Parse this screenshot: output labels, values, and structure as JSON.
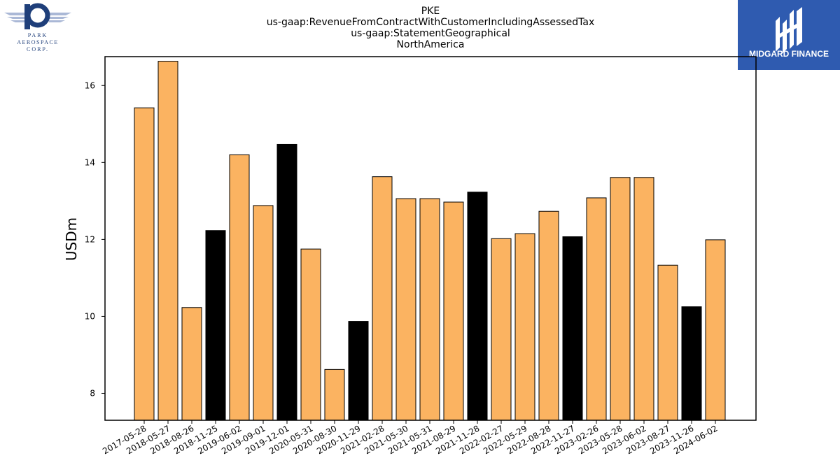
{
  "header": {
    "ticker": "PKE",
    "metric": "us-gaap:RevenueFromContractWithCustomerIncludingAssessedTax",
    "dimension": "us-gaap:StatementGeographical",
    "member": "NorthAmerica"
  },
  "logos": {
    "left": {
      "line1": "PARK",
      "line2": "AEROSPACE",
      "line3": "CORP."
    },
    "right": {
      "text": "MIDGARD FINANCE"
    }
  },
  "colors": {
    "bar_default": "#fbb361",
    "bar_highlight": "#000000",
    "logo_blue": "#2f5bb0",
    "logo_left_blue": "#1f3f7a"
  },
  "chart_data": {
    "type": "bar",
    "ylabel": "USDm",
    "ylim": [
      7.3,
      16.75
    ],
    "yticks": [
      8,
      10,
      12,
      14,
      16
    ],
    "categories": [
      "2017-05-28",
      "2018-05-27",
      "2018-08-26",
      "2018-11-25",
      "2019-06-02",
      "2019-09-01",
      "2019-12-01",
      "2020-05-31",
      "2020-08-30",
      "2020-11-29",
      "2021-02-28",
      "2021-05-30",
      "2021-05-31",
      "2021-08-29",
      "2021-11-28",
      "2022-02-27",
      "2022-05-29",
      "2022-08-28",
      "2022-11-27",
      "2023-02-26",
      "2023-05-28",
      "2023-06-02",
      "2023-08-27",
      "2023-11-26",
      "2024-06-02"
    ],
    "values": [
      15.42,
      16.63,
      10.23,
      12.23,
      14.2,
      12.88,
      14.47,
      11.75,
      8.62,
      9.87,
      13.63,
      13.06,
      13.06,
      12.97,
      13.23,
      12.02,
      12.15,
      12.73,
      12.07,
      13.08,
      13.61,
      13.61,
      11.33,
      10.25,
      11.99
    ],
    "highlighted": [
      false,
      false,
      false,
      true,
      false,
      false,
      true,
      false,
      false,
      true,
      false,
      false,
      false,
      false,
      true,
      false,
      false,
      false,
      true,
      false,
      false,
      false,
      false,
      true,
      false
    ]
  }
}
